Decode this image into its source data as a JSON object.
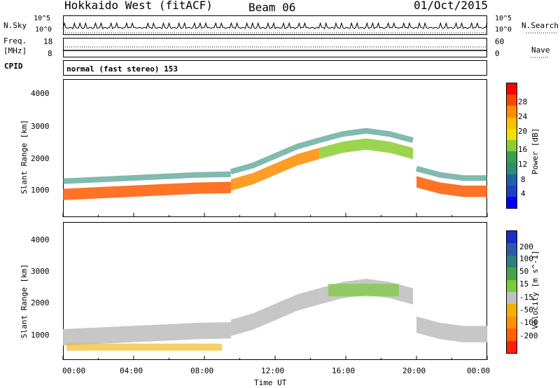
{
  "header": {
    "title": "Hokkaido West (fitACF)",
    "beam": "Beam 06",
    "date": "01/Oct/2015"
  },
  "noise_panel": {
    "left_label": "N.Sky",
    "right_label": "N.Search",
    "left_ticks": [
      "10^5",
      "10^0"
    ],
    "right_ticks": [
      "10^5",
      "10^0"
    ]
  },
  "freq_panel": {
    "left_label_1": "Freq.",
    "left_label_2": "[MHz]",
    "left_ticks": [
      "18",
      "8"
    ],
    "right_label": "Nave",
    "right_ticks": [
      "60",
      "0"
    ]
  },
  "cpid_panel": {
    "label": "CPID",
    "text": "normal (fast stereo) 153"
  },
  "power_colorbar": {
    "label": "Power [dB]",
    "ticks": [
      "28",
      "24",
      "20",
      "16",
      "12",
      "8",
      "4"
    ],
    "colors": [
      "#ff0000",
      "#ff4400",
      "#ff8c00",
      "#ffc000",
      "#f0e000",
      "#8ccc30",
      "#38a050",
      "#2d8c78",
      "#2060a8",
      "#1a40c8",
      "#0000ff"
    ]
  },
  "velocity_colorbar": {
    "label": "Velocity [m s^-1]",
    "ticks": [
      "200",
      "100",
      "50",
      "15",
      "-15",
      "-50",
      "-100",
      "-200"
    ],
    "colors": [
      "#1a2bc8",
      "#2c5aa8",
      "#2f7f7f",
      "#49a449",
      "#7acc3a",
      "#c0c0c0",
      "#f0b000",
      "#ff9000",
      "#ff6000",
      "#ff2000"
    ]
  },
  "chart_data": [
    {
      "type": "heatmap",
      "name": "power",
      "ylabel": "Slant Range [km]",
      "yticks": [
        "4000",
        "3000",
        "2000",
        "1000"
      ],
      "ylim": [
        180,
        4560
      ],
      "xlim": [
        0,
        24
      ],
      "bands": [
        {
          "from_h": 0,
          "to_h": 9.5,
          "center_km": [
            900,
            950,
            1000,
            1050,
            1100,
            1120
          ],
          "color": "#ff5a00"
        },
        {
          "from_h": 9.5,
          "to_h": 14.5,
          "center_km": [
            1200,
            1400,
            1700,
            2000,
            2200
          ],
          "color": "#ff8c00"
        },
        {
          "from_h": 14.5,
          "to_h": 19.8,
          "center_km": [
            2200,
            2400,
            2500,
            2400,
            2200
          ],
          "color": "#8ccc30"
        },
        {
          "from_h": 20,
          "to_h": 24,
          "center_km": [
            1300,
            1100,
            1000,
            1000
          ],
          "color": "#ff5a00"
        }
      ]
    },
    {
      "type": "heatmap",
      "name": "velocity",
      "ylabel": "Slant Range [km]",
      "yticks": [
        "4000",
        "3000",
        "2000",
        "1000"
      ],
      "ylim": [
        180,
        4560
      ],
      "xlim": [
        0,
        24
      ],
      "xticks": [
        "00:00",
        "04:00",
        "08:00",
        "12:00",
        "16:00",
        "20:00",
        "00:00"
      ],
      "xlabel": "Time UT"
    }
  ]
}
